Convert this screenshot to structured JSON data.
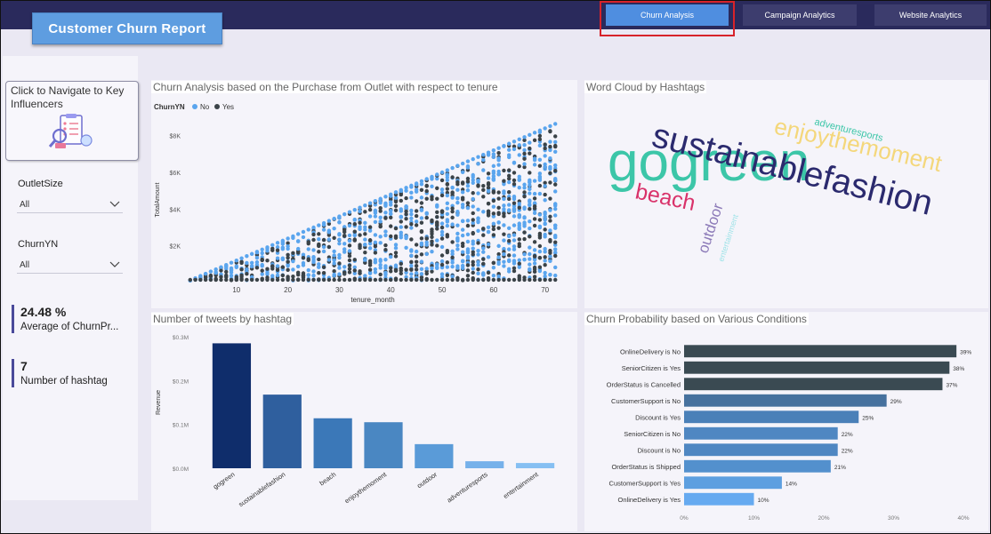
{
  "header": {
    "title": "Customer Churn Report",
    "nav": [
      "Churn Analysis",
      "Campaign Analytics",
      "Website Analytics"
    ],
    "active_nav": "Churn Analysis"
  },
  "sidebar": {
    "key_influencers_label": "Click to Navigate to Key Influencers",
    "slicers": [
      {
        "label": "OutletSize",
        "value": "All"
      },
      {
        "label": "ChurnYN",
        "value": "All"
      }
    ],
    "kpis": [
      {
        "value": "24.48 %",
        "label": "Average of ChurnPr..."
      },
      {
        "value": "7",
        "label": "Number of hashtag"
      }
    ]
  },
  "scatter": {
    "title": "Churn Analysis based on the Purchase from Outlet with respect to tenure",
    "legend_title": "ChurnYN",
    "legend_items": [
      {
        "name": "No",
        "color": "#5aa5ee"
      },
      {
        "name": "Yes",
        "color": "#3b4348"
      }
    ]
  },
  "wordcloud": {
    "title": "Word Cloud by Hashtags",
    "words": [
      {
        "text": "gogreen",
        "color": "#3cc6a8",
        "rank": 1
      },
      {
        "text": "sustainablefashion",
        "color": "#2b2a6e",
        "rank": 2
      },
      {
        "text": "enjoythemoment",
        "color": "#f4d77b",
        "rank": 3
      },
      {
        "text": "beach",
        "color": "#d9326a",
        "rank": 4
      },
      {
        "text": "outdoor",
        "color": "#8c7ab8",
        "rank": 5
      },
      {
        "text": "adventuresports",
        "color": "#3cc6a8",
        "rank": 6
      },
      {
        "text": "entertainment",
        "color": "#9fe3e8",
        "rank": 7
      }
    ]
  },
  "tweets_title": "Number of tweets by hashtag",
  "churnprob_title": "Churn Probability based on Various Conditions",
  "chart_data": [
    {
      "type": "scatter",
      "title": "",
      "xlabel": "tenure_month",
      "ylabel": "TotalAmount",
      "xlim": [
        0,
        73
      ],
      "ylim": [
        0,
        9000
      ],
      "x_ticks": [
        10,
        20,
        30,
        40,
        50,
        60,
        70
      ],
      "y_ticks": [
        2000,
        4000,
        6000,
        8000
      ],
      "y_tick_labels": [
        "$2K",
        "$4K",
        "$6K",
        "$8K"
      ],
      "series": [
        {
          "name": "No",
          "color": "#5aa5ee",
          "trend": "TotalAmount ranges from about 120 per tenure month at the low band up to about 120 x tenure_month at the upper envelope"
        },
        {
          "name": "Yes",
          "color": "#3b4348"
        }
      ]
    },
    {
      "type": "bar",
      "title": "",
      "xlabel": "",
      "ylabel": "Revenue",
      "categories": [
        "gogreen",
        "sustainablefashion",
        "beach",
        "enjoythemoment",
        "outdoor",
        "adventuresports",
        "entertainment"
      ],
      "values": [
        0.285,
        0.168,
        0.114,
        0.105,
        0.055,
        0.016,
        0.012
      ],
      "colors": [
        "#0f2d6b",
        "#2f5f9e",
        "#3b78b8",
        "#4a87c2",
        "#5a9bd8",
        "#76b1ea",
        "#86bff2"
      ],
      "ylim": [
        0,
        0.3
      ],
      "y_ticks": [
        0,
        0.1,
        0.2,
        0.3
      ],
      "y_tick_labels": [
        "$0.0M",
        "$0.1M",
        "$0.2M",
        "$0.3M"
      ]
    },
    {
      "type": "bar",
      "orientation": "horizontal",
      "title": "",
      "categories": [
        "OnlineDelivery is No",
        "SeniorCitizen is Yes",
        "OrderStatus is Cancelled",
        "CustomerSupport is No",
        "Discount is Yes",
        "SeniorCitizen is No",
        "Discount is No",
        "OrderStatus is Shipped",
        "CustomerSupport is Yes",
        "OnlineDelivery is Yes"
      ],
      "values": [
        39,
        38,
        37,
        29,
        25,
        22,
        22,
        21,
        14,
        10
      ],
      "value_labels": [
        "39%",
        "38%",
        "37%",
        "29%",
        "25%",
        "22%",
        "22%",
        "21%",
        "14%",
        "10%"
      ],
      "colors": [
        "#3a4a52",
        "#3a4a52",
        "#3a4a52",
        "#46719e",
        "#4a80b8",
        "#4f87c2",
        "#4f87c2",
        "#5390cd",
        "#5d9fe0",
        "#66aaf0"
      ],
      "xlim": [
        0,
        40
      ],
      "x_ticks": [
        0,
        10,
        20,
        30,
        40
      ],
      "x_tick_labels": [
        "0%",
        "10%",
        "20%",
        "30%",
        "40%"
      ]
    }
  ]
}
